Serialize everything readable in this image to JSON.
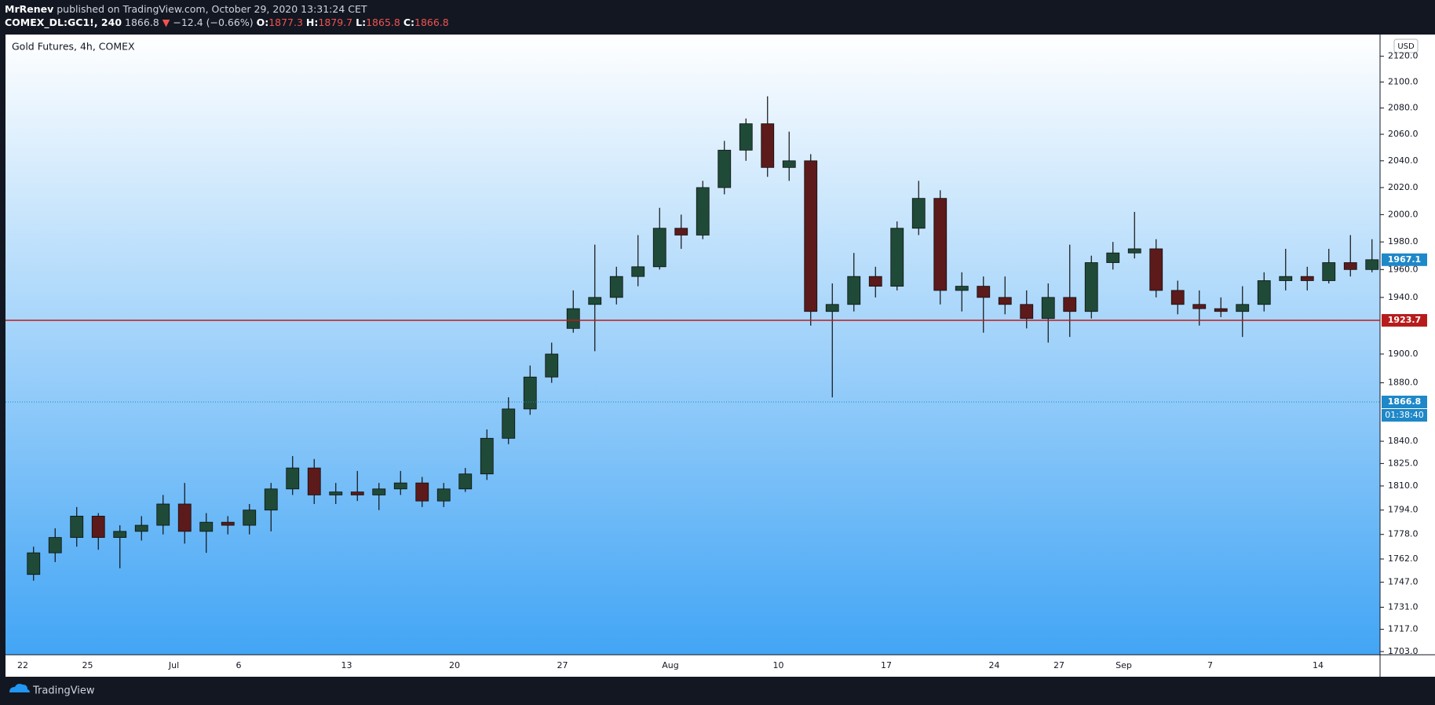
{
  "header": {
    "publisher": "MrRenev",
    "published": "published on TradingView.com, October 29, 2020 13:31:24 CET",
    "symbol": "COMEX_DL:GC1!, 240",
    "last": "1866.8",
    "arrow": "▼",
    "change": "−12.4 (−0.66%)",
    "o_label": "O:",
    "o": "1877.3",
    "h_label": "H:",
    "h": "1879.7",
    "l_label": "L:",
    "l": "1865.8",
    "c_label": "C:",
    "c": "1866.8"
  },
  "footer": {
    "brand": "TradingView"
  },
  "chart_data": {
    "type": "candlestick",
    "title": "Gold Futures, 4h, COMEX",
    "currency": "USD",
    "log_scale": true,
    "up_color": "#1f4a38",
    "down_color": "#5c1a1a",
    "wick_color": "#101010",
    "x": [
      "06-22",
      "06-23",
      "06-24",
      "06-25",
      "06-26",
      "06-29",
      "06-30",
      "07-01",
      "07-02",
      "07-03",
      "07-06",
      "07-07",
      "07-08",
      "07-09",
      "07-10",
      "07-13",
      "07-14",
      "07-15",
      "07-16",
      "07-17",
      "07-20",
      "07-21",
      "07-22",
      "07-23",
      "07-24",
      "07-27",
      "07-28",
      "07-29",
      "07-30",
      "07-31",
      "08-03",
      "08-04",
      "08-05",
      "08-06",
      "08-07",
      "08-10",
      "08-11",
      "08-12",
      "08-13",
      "08-14",
      "08-17",
      "08-18",
      "08-19",
      "08-20",
      "08-21",
      "08-24",
      "08-25",
      "08-26",
      "08-27",
      "08-28",
      "08-31",
      "09-01",
      "09-02",
      "09-03",
      "09-04",
      "09-07",
      "09-08",
      "09-09",
      "09-10",
      "09-11",
      "09-14",
      "09-15",
      "09-16"
    ],
    "open": [
      1752,
      1766,
      1776,
      1790,
      1776,
      1780,
      1784,
      1798,
      1780,
      1786,
      1784,
      1794,
      1808,
      1822,
      1804,
      1806,
      1804,
      1808,
      1812,
      1800,
      1808,
      1818,
      1842,
      1862,
      1884,
      1918,
      1935,
      1940,
      1955,
      1962,
      1990,
      1985,
      2020,
      2048,
      2068,
      2035,
      2040,
      1930,
      1935,
      1955,
      1948,
      1990,
      2012,
      1945,
      1948,
      1940,
      1935,
      1925,
      1940,
      1930,
      1965,
      1972,
      1975,
      1945,
      1935,
      1932,
      1930,
      1935,
      1952,
      1955,
      1952,
      1965,
      1960
    ],
    "high": [
      1770,
      1782,
      1796,
      1792,
      1784,
      1790,
      1804,
      1812,
      1792,
      1790,
      1798,
      1812,
      1830,
      1828,
      1812,
      1820,
      1812,
      1820,
      1816,
      1812,
      1822,
      1848,
      1870,
      1892,
      1908,
      1945,
      1978,
      1962,
      1985,
      2005,
      2000,
      2025,
      2055,
      2072,
      2089,
      2062,
      2045,
      1950,
      1972,
      1962,
      1995,
      2025,
      2018,
      1958,
      1955,
      1955,
      1945,
      1950,
      1978,
      1970,
      1980,
      2002,
      1982,
      1952,
      1945,
      1940,
      1948,
      1958,
      1975,
      1962,
      1975,
      1985,
      1982
    ],
    "low": [
      1748,
      1760,
      1770,
      1768,
      1756,
      1774,
      1778,
      1772,
      1766,
      1778,
      1778,
      1780,
      1804,
      1798,
      1798,
      1800,
      1794,
      1804,
      1796,
      1796,
      1806,
      1814,
      1838,
      1858,
      1880,
      1915,
      1902,
      1935,
      1948,
      1960,
      1975,
      1982,
      2015,
      2040,
      2028,
      2025,
      1920,
      1870,
      1930,
      1940,
      1945,
      1985,
      1935,
      1930,
      1915,
      1928,
      1918,
      1908,
      1912,
      1925,
      1960,
      1968,
      1940,
      1928,
      1920,
      1926,
      1912,
      1930,
      1945,
      1945,
      1950,
      1955,
      1958
    ],
    "close": [
      1766,
      1776,
      1790,
      1776,
      1780,
      1784,
      1798,
      1780,
      1786,
      1784,
      1794,
      1808,
      1822,
      1804,
      1806,
      1804,
      1808,
      1812,
      1800,
      1808,
      1818,
      1842,
      1862,
      1884,
      1900,
      1932,
      1940,
      1955,
      1962,
      1990,
      1985,
      2020,
      2048,
      2068,
      2035,
      2040,
      1930,
      1935,
      1955,
      1948,
      1990,
      2012,
      1945,
      1948,
      1940,
      1935,
      1925,
      1940,
      1930,
      1965,
      1972,
      1975,
      1945,
      1935,
      1932,
      1930,
      1935,
      1952,
      1955,
      1952,
      1965,
      1960,
      1967.1
    ],
    "xticks": [
      {
        "value": "06-22",
        "label": "22"
      },
      {
        "value": "06-25",
        "label": "25"
      },
      {
        "value": "07-01",
        "label": "Jul"
      },
      {
        "value": "07-06",
        "label": "6"
      },
      {
        "value": "07-13",
        "label": "13"
      },
      {
        "value": "07-20",
        "label": "20"
      },
      {
        "value": "07-27",
        "label": "27"
      },
      {
        "value": "08-03",
        "label": "Aug"
      },
      {
        "value": "08-10",
        "label": "10"
      },
      {
        "value": "08-17",
        "label": "17"
      },
      {
        "value": "08-24",
        "label": "24"
      },
      {
        "value": "08-27",
        "label": "27"
      },
      {
        "value": "09-01",
        "label": "Sep"
      },
      {
        "value": "09-07",
        "label": "7"
      },
      {
        "value": "09-14",
        "label": "14"
      }
    ],
    "ylim": [
      1701,
      2137
    ],
    "yticks": [
      {
        "value": 1703,
        "label": "1703.0"
      },
      {
        "value": 1717,
        "label": "1717.0"
      },
      {
        "value": 1731,
        "label": "1731.0"
      },
      {
        "value": 1747,
        "label": "1747.0"
      },
      {
        "value": 1762,
        "label": "1762.0"
      },
      {
        "value": 1778,
        "label": "1778.0"
      },
      {
        "value": 1794,
        "label": "1794.0"
      },
      {
        "value": 1810,
        "label": "1810.0"
      },
      {
        "value": 1825,
        "label": "1825.0"
      },
      {
        "value": 1840,
        "label": "1840.0"
      },
      {
        "value": 1880,
        "label": "1880.0"
      },
      {
        "value": 1900,
        "label": "1900.0"
      },
      {
        "value": 1940,
        "label": "1940.0"
      },
      {
        "value": 1960,
        "label": "1960.0"
      },
      {
        "value": 1980,
        "label": "1980.0"
      },
      {
        "value": 2000,
        "label": "2000.0"
      },
      {
        "value": 2020,
        "label": "2020.0"
      },
      {
        "value": 2040,
        "label": "2040.0"
      },
      {
        "value": 2060,
        "label": "2060.0"
      },
      {
        "value": 2080,
        "label": "2080.0"
      },
      {
        "value": 2100,
        "label": "2100.0"
      },
      {
        "value": 2120,
        "label": "2120.0"
      }
    ],
    "hline": 1923.7,
    "hline_color": "#b71c1c",
    "last_visible": 1967.1,
    "last_visible_color": "#1e88c8",
    "last_price": 1866.8,
    "last_price_color": "#1e88c8",
    "countdown": "01:38:40"
  }
}
